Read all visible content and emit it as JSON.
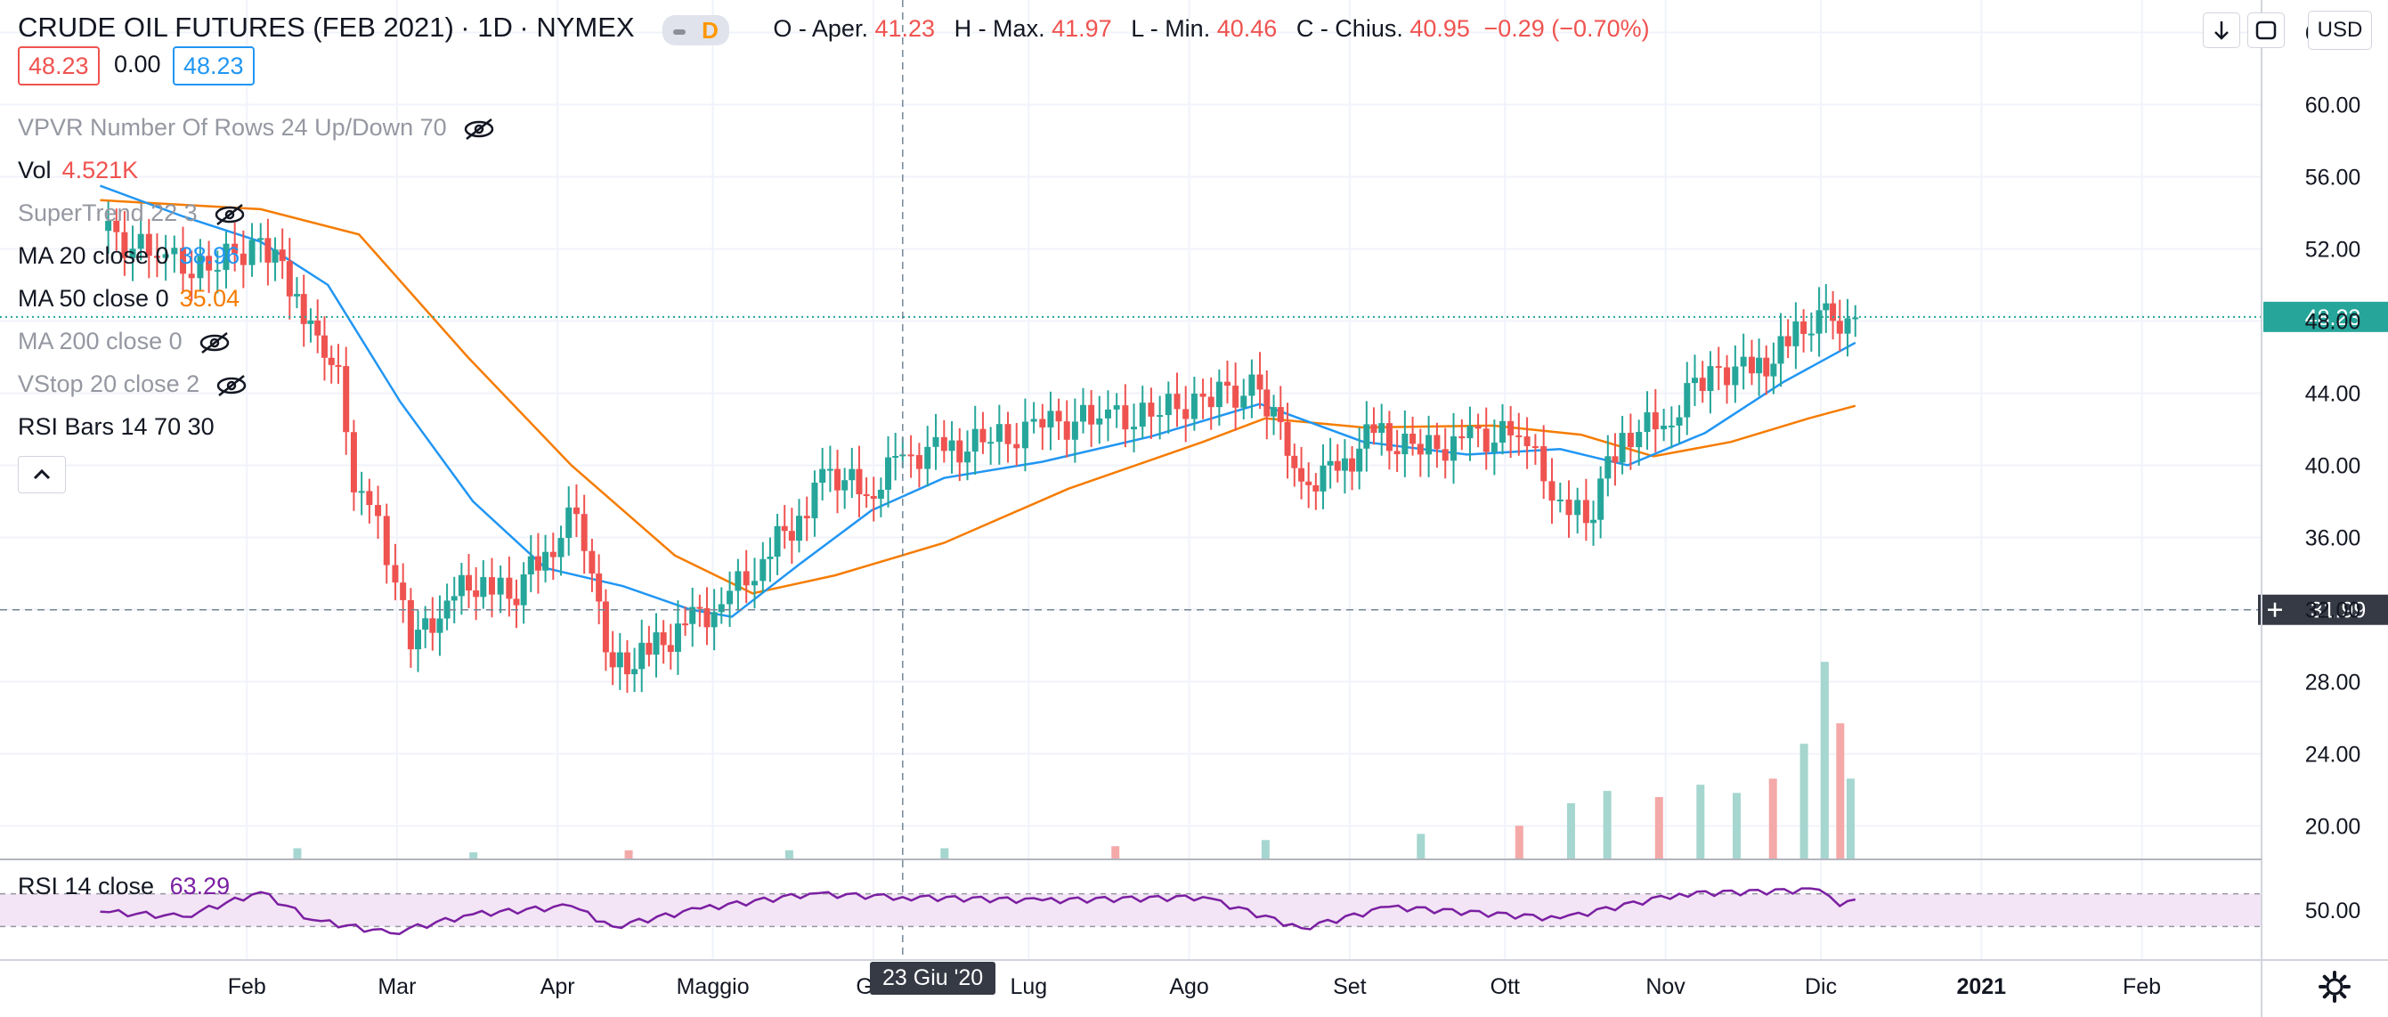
{
  "header": {
    "title": "CRUDE OIL FUTURES (FEB 2021)",
    "interval": "1D",
    "exchange": "NYMEX",
    "flag": "D",
    "ohlc": [
      {
        "label": "O - Aper.",
        "value": "41.23"
      },
      {
        "label": "H - Max.",
        "value": "41.97"
      },
      {
        "label": "L - Min.",
        "value": "40.46"
      },
      {
        "label": "C - Chius.",
        "value": "40.95"
      },
      {
        "label": "",
        "value": "−0.29 (−0.70%)"
      }
    ],
    "bid": "48.23",
    "spread": "0.00",
    "ask": "48.23",
    "currency": "USD"
  },
  "indicators": [
    {
      "label": "VPVR Number Of Rows 24 Up/Down 70",
      "value": "",
      "hidden": true,
      "value_color": ""
    },
    {
      "label": "Vol",
      "value": "4.521K",
      "hidden": false,
      "value_color": "#ef5350"
    },
    {
      "label": "SuperTrend 22 3",
      "value": "",
      "hidden": true,
      "value_color": ""
    },
    {
      "label": "MA 20 close 0",
      "value": "38.96",
      "hidden": false,
      "value_color": "#2196f3"
    },
    {
      "label": "MA 50 close 0",
      "value": "35.04",
      "hidden": false,
      "value_color": "#f57c00"
    },
    {
      "label": "MA 200 close 0",
      "value": "",
      "hidden": true,
      "value_color": ""
    },
    {
      "label": "VStop 20 close 2",
      "value": "",
      "hidden": true,
      "value_color": ""
    },
    {
      "label": "RSI Bars 14 70 30",
      "value": "",
      "hidden": false,
      "value_color": ""
    }
  ],
  "rsi_panel": {
    "label": "RSI 14 close",
    "value": "63.29"
  },
  "crosshair": {
    "date_label": "23 Giu '20",
    "price_label": "31.99"
  },
  "colors": {
    "up": "#26a69a",
    "down": "#ef5350",
    "ma20": "#2196f3",
    "ma50": "#f57c00",
    "rsi": "#7b1fa2",
    "rsi_band": "#f3e5f5",
    "vol_up": "#a5d6cf",
    "vol_down": "#f4a9a8"
  },
  "chart_data": {
    "type": "candlestick",
    "x_ticks": [
      "Feb",
      "Mar",
      "Apr",
      "Maggio",
      "Giu",
      "Lug",
      "Ago",
      "Set",
      "Ott",
      "Nov",
      "Dic",
      "2021",
      "Feb"
    ],
    "y_ticks": [
      "64.00",
      "60.00",
      "56.00",
      "52.00",
      "48.00",
      "44.00",
      "40.00",
      "36.00",
      "32.00",
      "28.00",
      "24.00",
      "20.00"
    ],
    "ylim": [
      18.2,
      65.8
    ],
    "last_price": "48.23",
    "rsi_ticks": [
      "50.00"
    ],
    "rsi_ylim": [
      0,
      100
    ],
    "close_series": [
      {
        "date": "2020-01-20",
        "close": 53.0
      },
      {
        "date": "2020-01-31",
        "close": 51.5
      },
      {
        "date": "2020-02-10",
        "close": 50.8
      },
      {
        "date": "2020-02-20",
        "close": 52.6
      },
      {
        "date": "2020-02-27",
        "close": 49.5
      },
      {
        "date": "2020-03-02",
        "close": 47.2
      },
      {
        "date": "2020-03-06",
        "close": 45.5
      },
      {
        "date": "2020-03-09",
        "close": 38.5
      },
      {
        "date": "2020-03-12",
        "close": 37.8
      },
      {
        "date": "2020-03-17",
        "close": 33.5
      },
      {
        "date": "2020-03-20",
        "close": 29.8
      },
      {
        "date": "2020-03-27",
        "close": 32.5
      },
      {
        "date": "2020-04-03",
        "close": 33.8
      },
      {
        "date": "2020-04-08",
        "close": 32.6
      },
      {
        "date": "2020-04-15",
        "close": 35.2
      },
      {
        "date": "2020-04-21",
        "close": 37.3
      },
      {
        "date": "2020-04-24",
        "close": 34.0
      },
      {
        "date": "2020-04-28",
        "close": 28.8
      },
      {
        "date": "2020-05-05",
        "close": 29.5
      },
      {
        "date": "2020-05-12",
        "close": 31.2
      },
      {
        "date": "2020-05-19",
        "close": 32.3
      },
      {
        "date": "2020-05-27",
        "close": 34.8
      },
      {
        "date": "2020-06-03",
        "close": 37.2
      },
      {
        "date": "2020-06-09",
        "close": 39.8
      },
      {
        "date": "2020-06-16",
        "close": 38.3
      },
      {
        "date": "2020-06-23",
        "close": 40.6
      },
      {
        "date": "2020-07-01",
        "close": 40.8
      },
      {
        "date": "2020-07-10",
        "close": 41.3
      },
      {
        "date": "2020-07-20",
        "close": 42.1
      },
      {
        "date": "2020-07-31",
        "close": 42.6
      },
      {
        "date": "2020-08-10",
        "close": 42.7
      },
      {
        "date": "2020-08-20",
        "close": 43.8
      },
      {
        "date": "2020-08-31",
        "close": 44.2
      },
      {
        "date": "2020-09-04",
        "close": 42.4
      },
      {
        "date": "2020-09-08",
        "close": 39.1
      },
      {
        "date": "2020-09-15",
        "close": 39.7
      },
      {
        "date": "2020-09-22",
        "close": 41.8
      },
      {
        "date": "2020-10-01",
        "close": 40.6
      },
      {
        "date": "2020-10-09",
        "close": 41.5
      },
      {
        "date": "2020-10-20",
        "close": 41.6
      },
      {
        "date": "2020-10-28",
        "close": 38.1
      },
      {
        "date": "2020-11-02",
        "close": 36.8
      },
      {
        "date": "2020-11-09",
        "close": 41.8
      },
      {
        "date": "2020-11-17",
        "close": 42.2
      },
      {
        "date": "2020-11-26",
        "close": 45.5
      },
      {
        "date": "2020-12-04",
        "close": 45.1
      },
      {
        "date": "2020-12-11",
        "close": 46.6
      },
      {
        "date": "2020-12-17",
        "close": 48.6
      },
      {
        "date": "2020-12-21",
        "close": 47.3
      },
      {
        "date": "2020-12-24",
        "close": 48.2
      }
    ],
    "ma20_series": [
      {
        "date": "2020-01-20",
        "close": 55.5
      },
      {
        "date": "2020-02-05",
        "close": 53.8
      },
      {
        "date": "2020-02-20",
        "close": 52.4
      },
      {
        "date": "2020-03-04",
        "close": 50.0
      },
      {
        "date": "2020-03-18",
        "close": 43.5
      },
      {
        "date": "2020-04-01",
        "close": 38.0
      },
      {
        "date": "2020-04-15",
        "close": 34.3
      },
      {
        "date": "2020-04-30",
        "close": 33.3
      },
      {
        "date": "2020-05-13",
        "close": 32.0
      },
      {
        "date": "2020-05-21",
        "close": 31.6
      },
      {
        "date": "2020-06-03",
        "close": 34.5
      },
      {
        "date": "2020-06-17",
        "close": 37.5
      },
      {
        "date": "2020-07-01",
        "close": 39.3
      },
      {
        "date": "2020-07-20",
        "close": 40.2
      },
      {
        "date": "2020-08-10",
        "close": 41.6
      },
      {
        "date": "2020-08-31",
        "close": 43.4
      },
      {
        "date": "2020-09-20",
        "close": 41.3
      },
      {
        "date": "2020-10-10",
        "close": 40.6
      },
      {
        "date": "2020-10-28",
        "close": 40.9
      },
      {
        "date": "2020-11-10",
        "close": 40.0
      },
      {
        "date": "2020-11-25",
        "close": 41.8
      },
      {
        "date": "2020-12-10",
        "close": 44.6
      },
      {
        "date": "2020-12-24",
        "close": 46.8
      }
    ],
    "ma50_series": [
      {
        "date": "2020-01-20",
        "close": 54.7
      },
      {
        "date": "2020-02-20",
        "close": 54.2
      },
      {
        "date": "2020-03-10",
        "close": 52.8
      },
      {
        "date": "2020-03-31",
        "close": 46.0
      },
      {
        "date": "2020-04-20",
        "close": 40.0
      },
      {
        "date": "2020-05-10",
        "close": 35.0
      },
      {
        "date": "2020-05-25",
        "close": 32.9
      },
      {
        "date": "2020-06-10",
        "close": 33.9
      },
      {
        "date": "2020-07-01",
        "close": 35.7
      },
      {
        "date": "2020-07-25",
        "close": 38.7
      },
      {
        "date": "2020-08-20",
        "close": 41.3
      },
      {
        "date": "2020-09-01",
        "close": 42.6
      },
      {
        "date": "2020-09-20",
        "close": 42.1
      },
      {
        "date": "2020-10-15",
        "close": 42.2
      },
      {
        "date": "2020-11-01",
        "close": 41.7
      },
      {
        "date": "2020-11-15",
        "close": 40.5
      },
      {
        "date": "2020-11-30",
        "close": 41.3
      },
      {
        "date": "2020-12-15",
        "close": 42.6
      },
      {
        "date": "2020-12-24",
        "close": 43.3
      }
    ],
    "rsi_series": [
      {
        "date": "2020-01-20",
        "close": 48
      },
      {
        "date": "2020-02-05",
        "close": 42
      },
      {
        "date": "2020-02-20",
        "close": 72
      },
      {
        "date": "2020-03-01",
        "close": 38
      },
      {
        "date": "2020-03-16",
        "close": 22
      },
      {
        "date": "2020-04-01",
        "close": 45
      },
      {
        "date": "2020-04-20",
        "close": 55
      },
      {
        "date": "2020-04-28",
        "close": 30
      },
      {
        "date": "2020-05-15",
        "close": 52
      },
      {
        "date": "2020-06-05",
        "close": 70
      },
      {
        "date": "2020-06-23",
        "close": 66
      },
      {
        "date": "2020-07-20",
        "close": 62
      },
      {
        "date": "2020-08-20",
        "close": 66
      },
      {
        "date": "2020-09-08",
        "close": 28
      },
      {
        "date": "2020-09-25",
        "close": 54
      },
      {
        "date": "2020-10-28",
        "close": 40
      },
      {
        "date": "2020-11-20",
        "close": 70
      },
      {
        "date": "2020-12-17",
        "close": 75
      },
      {
        "date": "2020-12-21",
        "close": 55
      },
      {
        "date": "2020-12-24",
        "close": 63
      }
    ],
    "volume_series": [
      {
        "date": "2020-02-27",
        "volume": 0.5
      },
      {
        "date": "2020-04-01",
        "volume": 0.3
      },
      {
        "date": "2020-05-01",
        "volume": 0.4
      },
      {
        "date": "2020-06-01",
        "volume": 0.4
      },
      {
        "date": "2020-07-01",
        "volume": 0.5
      },
      {
        "date": "2020-08-03",
        "volume": 0.6
      },
      {
        "date": "2020-09-01",
        "volume": 0.9
      },
      {
        "date": "2020-10-01",
        "volume": 1.2
      },
      {
        "date": "2020-10-20",
        "volume": 1.6
      },
      {
        "date": "2020-10-30",
        "volume": 2.7
      },
      {
        "date": "2020-11-06",
        "volume": 3.3
      },
      {
        "date": "2020-11-16",
        "volume": 3.0
      },
      {
        "date": "2020-11-24",
        "volume": 3.6
      },
      {
        "date": "2020-12-01",
        "volume": 3.2
      },
      {
        "date": "2020-12-08",
        "volume": 3.9
      },
      {
        "date": "2020-12-14",
        "volume": 5.6
      },
      {
        "date": "2020-12-18",
        "volume": 9.6
      },
      {
        "date": "2020-12-21",
        "volume": 6.6
      },
      {
        "date": "2020-12-23",
        "volume": 3.9
      }
    ]
  }
}
